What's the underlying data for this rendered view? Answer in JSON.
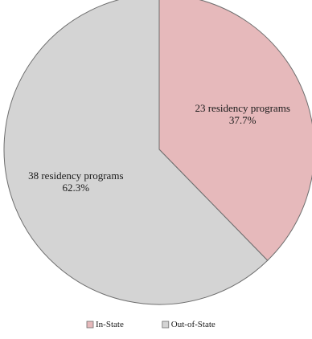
{
  "chart_data": {
    "type": "pie",
    "start": "12 o'clock",
    "direction": "clockwise",
    "legend_position": "bottom",
    "slices": [
      {
        "name": "In-State",
        "value": 23,
        "label": "23 residency programs",
        "percent_label": "37.7%",
        "color": "#e6b9bb"
      },
      {
        "name": "Out-of-State",
        "value": 38,
        "label": "38 residency programs",
        "percent_label": "62.3%",
        "color": "#d4d4d4"
      }
    ],
    "stroke_color": "#6e6e6e"
  }
}
